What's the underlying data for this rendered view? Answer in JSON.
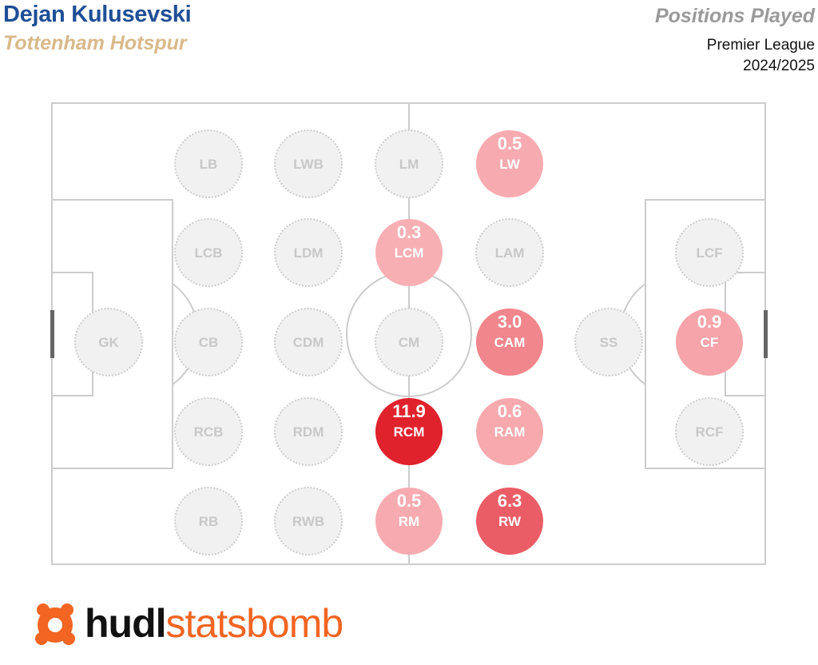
{
  "header": {
    "player": "Dejan Kulusevski",
    "team": "Tottenham Hotspur",
    "title": "Positions Played",
    "competition": "Premier League",
    "season": "2024/2025"
  },
  "colors": {
    "player": "#1f4f96",
    "team": "#d9b98a",
    "title": "#9a9a9a",
    "empty_fill": "#f1f1f1",
    "empty_stroke": "#cccccc",
    "empty_text": "#c8c8c8",
    "pitch_line": "#cccccc",
    "low": "#f9b7bb",
    "high": "#e0222d",
    "logo_orange": "#f26522"
  },
  "logo": {
    "hudl": "hudl",
    "statsbomb": "statsbomb"
  },
  "chart_data": {
    "type": "heatmap",
    "title": "Positions Played",
    "value_range": [
      0,
      11.9
    ],
    "positions": [
      {
        "label": "LB",
        "value": null
      },
      {
        "label": "LWB",
        "value": null
      },
      {
        "label": "LM",
        "value": null
      },
      {
        "label": "LW",
        "value": 0.5
      },
      {
        "label": "LCB",
        "value": null
      },
      {
        "label": "LDM",
        "value": null
      },
      {
        "label": "LCM",
        "value": 0.3
      },
      {
        "label": "LAM",
        "value": null
      },
      {
        "label": "LCF",
        "value": null
      },
      {
        "label": "GK",
        "value": null
      },
      {
        "label": "CB",
        "value": null
      },
      {
        "label": "CDM",
        "value": null
      },
      {
        "label": "CM",
        "value": null
      },
      {
        "label": "CAM",
        "value": 3.0
      },
      {
        "label": "SS",
        "value": null
      },
      {
        "label": "CF",
        "value": 0.9
      },
      {
        "label": "RCB",
        "value": null
      },
      {
        "label": "RDM",
        "value": null
      },
      {
        "label": "RCM",
        "value": 11.9
      },
      {
        "label": "RAM",
        "value": 0.6
      },
      {
        "label": "RCF",
        "value": null
      },
      {
        "label": "RB",
        "value": null
      },
      {
        "label": "RWB",
        "value": null
      },
      {
        "label": "RM",
        "value": 0.5
      },
      {
        "label": "RW",
        "value": 6.3
      }
    ]
  }
}
